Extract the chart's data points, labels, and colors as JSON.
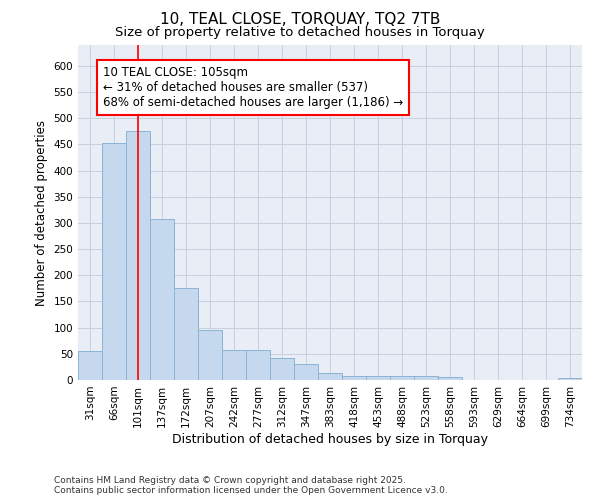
{
  "title": "10, TEAL CLOSE, TORQUAY, TQ2 7TB",
  "subtitle": "Size of property relative to detached houses in Torquay",
  "xlabel": "Distribution of detached houses by size in Torquay",
  "ylabel": "Number of detached properties",
  "footer1": "Contains HM Land Registry data © Crown copyright and database right 2025.",
  "footer2": "Contains public sector information licensed under the Open Government Licence v3.0.",
  "categories": [
    "31sqm",
    "66sqm",
    "101sqm",
    "137sqm",
    "172sqm",
    "207sqm",
    "242sqm",
    "277sqm",
    "312sqm",
    "347sqm",
    "383sqm",
    "418sqm",
    "453sqm",
    "488sqm",
    "523sqm",
    "558sqm",
    "593sqm",
    "629sqm",
    "664sqm",
    "699sqm",
    "734sqm"
  ],
  "values": [
    55,
    453,
    475,
    308,
    175,
    95,
    58,
    58,
    42,
    30,
    14,
    7,
    8,
    7,
    8,
    6,
    0,
    0,
    0,
    0,
    3
  ],
  "bar_color": "#c5d8ed",
  "bar_edge_color": "#8ab4d4",
  "grid_color": "#c8d0e0",
  "background_color": "#e8edf6",
  "vline_x": 2.0,
  "annotation_text": "10 TEAL CLOSE: 105sqm\n← 31% of detached houses are smaller (537)\n68% of semi-detached houses are larger (1,186) →",
  "ylim": [
    0,
    640
  ],
  "yticks": [
    0,
    50,
    100,
    150,
    200,
    250,
    300,
    350,
    400,
    450,
    500,
    550,
    600
  ],
  "title_fontsize": 11,
  "subtitle_fontsize": 9.5,
  "annot_fontsize": 8.5,
  "tick_fontsize": 7.5,
  "footer_fontsize": 6.5,
  "xlabel_fontsize": 9,
  "ylabel_fontsize": 8.5
}
